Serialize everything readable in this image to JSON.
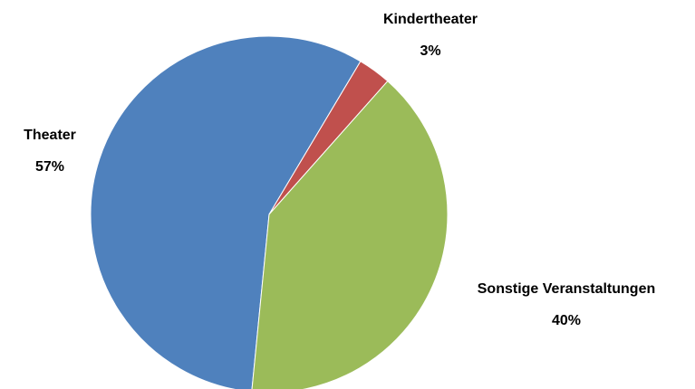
{
  "chart_data": {
    "type": "pie",
    "categories": [
      "Theater",
      "Kindertheater",
      "Sonstige Veranstaltungen"
    ],
    "values": [
      57,
      3,
      40
    ],
    "value_labels": [
      "57%",
      "3%",
      "40%"
    ],
    "colors": [
      "#4f81bd",
      "#c0504d",
      "#9bbb59"
    ]
  }
}
